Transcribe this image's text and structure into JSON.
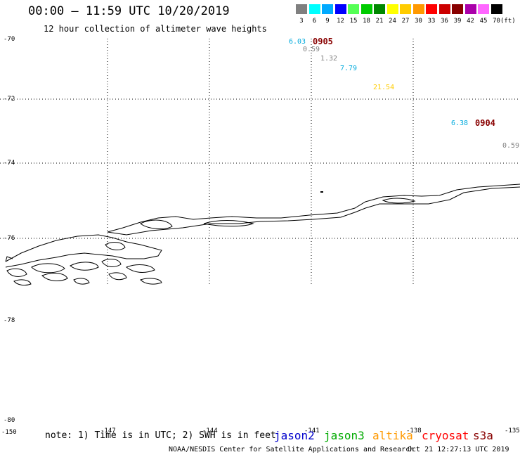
{
  "header": {
    "title": "00:00 – 11:59 UTC 10/20/2019",
    "subtitle": "12 hour collection of altimeter wave heights"
  },
  "legend": {
    "unit": "(ft)",
    "items": [
      {
        "label": "3",
        "color": "#808080"
      },
      {
        "label": "6",
        "color": "#00ffff"
      },
      {
        "label": "9",
        "color": "#00aaff"
      },
      {
        "label": "12",
        "color": "#0000ff"
      },
      {
        "label": "15",
        "color": "#55ff55"
      },
      {
        "label": "18",
        "color": "#00cc00"
      },
      {
        "label": "21",
        "color": "#008800"
      },
      {
        "label": "24",
        "color": "#ffff00"
      },
      {
        "label": "27",
        "color": "#ffcc00"
      },
      {
        "label": "30",
        "color": "#ff9900"
      },
      {
        "label": "33",
        "color": "#ff0000"
      },
      {
        "label": "36",
        "color": "#cc0000"
      },
      {
        "label": "39",
        "color": "#880000"
      },
      {
        "label": "42",
        "color": "#aa00aa"
      },
      {
        "label": "45",
        "color": "#ff66ff"
      },
      {
        "label": "70",
        "color": "#000000"
      }
    ]
  },
  "axes": {
    "y_labels": [
      "-70",
      "-72",
      "-74",
      "-76",
      "-78",
      "-80"
    ],
    "x_labels": [
      "-150",
      "-147",
      "-144",
      "-141",
      "-138",
      "-135"
    ]
  },
  "observations": [
    {
      "value": "6.03",
      "color": "#00aadd"
    },
    {
      "value": "0.59",
      "color": "#808080"
    },
    {
      "value": "1.32",
      "color": "#808080"
    },
    {
      "value": "7.79",
      "color": "#00aadd"
    },
    {
      "value": "21.54",
      "color": "#ffcc00"
    },
    {
      "value": "6.38",
      "color": "#00aadd"
    },
    {
      "value": "0.59",
      "color": "#808080"
    }
  ],
  "passes": [
    {
      "time": "0905",
      "color": "#880000"
    },
    {
      "time": "0904",
      "color": "#880000"
    }
  ],
  "footer": {
    "note": "note: 1) Time is in UTC; 2) SWH is in feet",
    "satellites": [
      {
        "name": "jason2",
        "color": "#0000cc"
      },
      {
        "name": "jason3",
        "color": "#00aa00"
      },
      {
        "name": "altika",
        "color": "#ff9900"
      },
      {
        "name": "cryosat",
        "color": "#ff0000"
      },
      {
        "name": "s3a",
        "color": "#880000"
      }
    ],
    "credit": "NOAA/NESDIS Center for Satellite Applications and Research",
    "timestamp": "Oct 21 12:27:13 UTC 2019"
  }
}
